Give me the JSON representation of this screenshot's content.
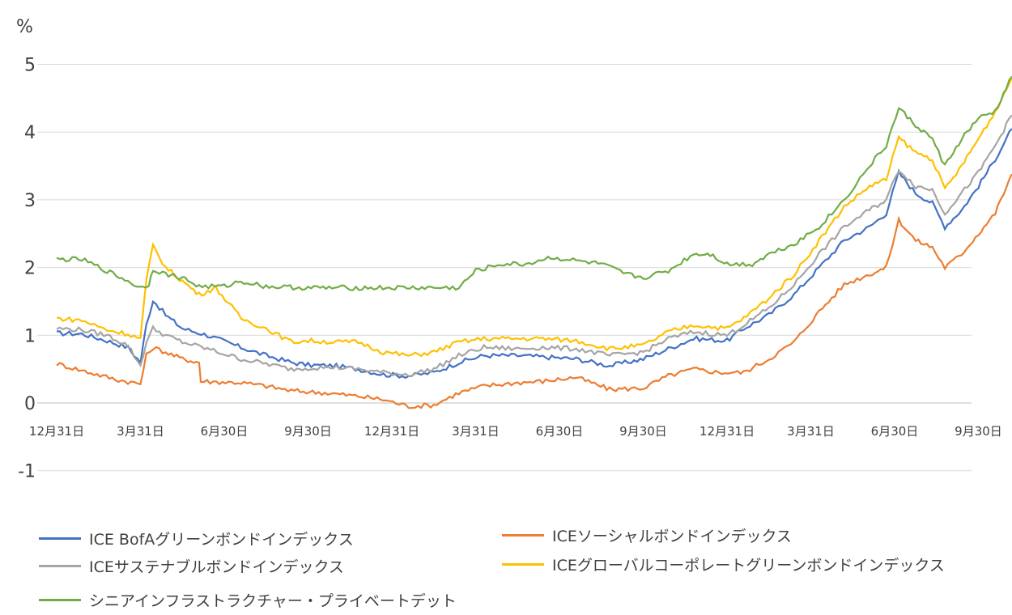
{
  "chart_data": {
    "type": "line",
    "ylabel": "%",
    "ylim": [
      -1,
      5
    ],
    "yticks": [
      "5",
      "4",
      "3",
      "2",
      "1",
      "0",
      "-1"
    ],
    "xticks": [
      "12月31日",
      "3月31日",
      "6月30日",
      "9月30日",
      "12月31日",
      "3月31日",
      "6月30日",
      "9月30日",
      "12月31日",
      "3月31日",
      "6月30日",
      "9月30日"
    ],
    "grid": true,
    "legend_position": "bottom",
    "series": [
      {
        "name": "ICE BofAグリーンボンドインデックス",
        "color": "#4472C4",
        "points": [
          [
            0,
            1.03
          ],
          [
            0.3,
            1.02
          ],
          [
            0.6,
            0.92
          ],
          [
            0.85,
            0.82
          ],
          [
            1.0,
            0.6
          ],
          [
            1.07,
            1.15
          ],
          [
            1.15,
            1.52
          ],
          [
            1.3,
            1.3
          ],
          [
            1.5,
            1.1
          ],
          [
            1.8,
            1.0
          ],
          [
            2.2,
            0.82
          ],
          [
            2.5,
            0.7
          ],
          [
            2.8,
            0.6
          ],
          [
            3.0,
            0.56
          ],
          [
            3.3,
            0.55
          ],
          [
            3.6,
            0.5
          ],
          [
            3.9,
            0.42
          ],
          [
            4.2,
            0.4
          ],
          [
            4.5,
            0.45
          ],
          [
            4.8,
            0.6
          ],
          [
            5.1,
            0.7
          ],
          [
            5.5,
            0.7
          ],
          [
            5.8,
            0.68
          ],
          [
            6.2,
            0.65
          ],
          [
            6.6,
            0.55
          ],
          [
            7.0,
            0.65
          ],
          [
            7.3,
            0.8
          ],
          [
            7.6,
            0.95
          ],
          [
            8.0,
            0.92
          ],
          [
            8.2,
            1.1
          ],
          [
            8.5,
            1.3
          ],
          [
            8.8,
            1.6
          ],
          [
            9.1,
            2.0
          ],
          [
            9.4,
            2.4
          ],
          [
            9.7,
            2.6
          ],
          [
            9.9,
            2.8
          ],
          [
            10.05,
            3.4
          ],
          [
            10.25,
            3.1
          ],
          [
            10.45,
            2.95
          ],
          [
            10.6,
            2.6
          ],
          [
            10.8,
            2.85
          ],
          [
            11.0,
            3.2
          ],
          [
            11.2,
            3.6
          ],
          [
            11.4,
            4.05
          ]
        ]
      },
      {
        "name": "ICEソーシャルボンドインデックス",
        "color": "#ED7D31",
        "points": [
          [
            0,
            0.58
          ],
          [
            0.3,
            0.48
          ],
          [
            0.7,
            0.35
          ],
          [
            1.0,
            0.28
          ],
          [
            1.07,
            0.7
          ],
          [
            1.15,
            0.82
          ],
          [
            1.3,
            0.75
          ],
          [
            1.5,
            0.65
          ],
          [
            1.7,
            0.6
          ],
          [
            1.72,
            0.32
          ],
          [
            2.2,
            0.3
          ],
          [
            2.5,
            0.25
          ],
          [
            2.8,
            0.18
          ],
          [
            3.2,
            0.15
          ],
          [
            3.6,
            0.1
          ],
          [
            3.9,
            0.05
          ],
          [
            4.2,
            -0.05
          ],
          [
            4.5,
            -0.03
          ],
          [
            4.8,
            0.15
          ],
          [
            5.1,
            0.25
          ],
          [
            5.5,
            0.3
          ],
          [
            5.8,
            0.32
          ],
          [
            6.2,
            0.38
          ],
          [
            6.6,
            0.2
          ],
          [
            7.0,
            0.22
          ],
          [
            7.3,
            0.4
          ],
          [
            7.6,
            0.5
          ],
          [
            7.9,
            0.45
          ],
          [
            8.2,
            0.45
          ],
          [
            8.5,
            0.65
          ],
          [
            8.8,
            0.9
          ],
          [
            9.1,
            1.35
          ],
          [
            9.4,
            1.75
          ],
          [
            9.7,
            1.9
          ],
          [
            9.9,
            2.0
          ],
          [
            10.05,
            2.7
          ],
          [
            10.25,
            2.4
          ],
          [
            10.45,
            2.3
          ],
          [
            10.6,
            2.0
          ],
          [
            10.8,
            2.2
          ],
          [
            11.0,
            2.5
          ],
          [
            11.2,
            2.8
          ],
          [
            11.4,
            3.38
          ]
        ]
      },
      {
        "name": "ICEサステナブルボンドインデックス",
        "color": "#A5A5A5",
        "points": [
          [
            0,
            1.1
          ],
          [
            0.3,
            1.08
          ],
          [
            0.6,
            1.0
          ],
          [
            0.85,
            0.85
          ],
          [
            1.0,
            0.55
          ],
          [
            1.07,
            0.9
          ],
          [
            1.15,
            1.1
          ],
          [
            1.3,
            1.0
          ],
          [
            1.5,
            0.9
          ],
          [
            1.8,
            0.8
          ],
          [
            2.2,
            0.65
          ],
          [
            2.5,
            0.58
          ],
          [
            2.8,
            0.5
          ],
          [
            3.0,
            0.52
          ],
          [
            3.3,
            0.53
          ],
          [
            3.6,
            0.5
          ],
          [
            3.9,
            0.45
          ],
          [
            4.2,
            0.42
          ],
          [
            4.5,
            0.5
          ],
          [
            4.8,
            0.7
          ],
          [
            5.1,
            0.82
          ],
          [
            5.5,
            0.8
          ],
          [
            5.8,
            0.82
          ],
          [
            6.2,
            0.8
          ],
          [
            6.6,
            0.7
          ],
          [
            7.0,
            0.75
          ],
          [
            7.3,
            0.95
          ],
          [
            7.6,
            1.05
          ],
          [
            8.0,
            1.0
          ],
          [
            8.2,
            1.15
          ],
          [
            8.5,
            1.4
          ],
          [
            8.8,
            1.75
          ],
          [
            9.1,
            2.2
          ],
          [
            9.4,
            2.6
          ],
          [
            9.7,
            2.85
          ],
          [
            9.9,
            3.0
          ],
          [
            10.05,
            3.45
          ],
          [
            10.25,
            3.2
          ],
          [
            10.45,
            3.15
          ],
          [
            10.6,
            2.8
          ],
          [
            10.8,
            3.1
          ],
          [
            11.0,
            3.4
          ],
          [
            11.2,
            3.8
          ],
          [
            11.4,
            4.25
          ]
        ]
      },
      {
        "name": "ICEグローバルコーポレートグリーンボンドインデックス",
        "color": "#FFC000",
        "points": [
          [
            0,
            1.25
          ],
          [
            0.3,
            1.22
          ],
          [
            0.6,
            1.08
          ],
          [
            0.85,
            1.02
          ],
          [
            1.0,
            0.95
          ],
          [
            1.07,
            1.8
          ],
          [
            1.15,
            2.32
          ],
          [
            1.3,
            2.0
          ],
          [
            1.5,
            1.8
          ],
          [
            1.7,
            1.6
          ],
          [
            1.9,
            1.7
          ],
          [
            2.2,
            1.25
          ],
          [
            2.5,
            1.1
          ],
          [
            2.8,
            0.9
          ],
          [
            3.0,
            0.92
          ],
          [
            3.3,
            0.9
          ],
          [
            3.6,
            0.9
          ],
          [
            3.9,
            0.75
          ],
          [
            4.2,
            0.7
          ],
          [
            4.5,
            0.75
          ],
          [
            4.8,
            0.9
          ],
          [
            5.1,
            0.95
          ],
          [
            5.5,
            0.95
          ],
          [
            5.8,
            0.95
          ],
          [
            6.2,
            0.92
          ],
          [
            6.6,
            0.8
          ],
          [
            7.0,
            0.85
          ],
          [
            7.3,
            1.05
          ],
          [
            7.6,
            1.15
          ],
          [
            8.0,
            1.1
          ],
          [
            8.2,
            1.25
          ],
          [
            8.5,
            1.55
          ],
          [
            8.8,
            1.9
          ],
          [
            9.1,
            2.4
          ],
          [
            9.4,
            2.9
          ],
          [
            9.7,
            3.2
          ],
          [
            9.9,
            3.3
          ],
          [
            10.05,
            3.92
          ],
          [
            10.25,
            3.7
          ],
          [
            10.45,
            3.6
          ],
          [
            10.6,
            3.15
          ],
          [
            10.8,
            3.5
          ],
          [
            11.0,
            3.9
          ],
          [
            11.2,
            4.3
          ],
          [
            11.4,
            4.8
          ]
        ]
      },
      {
        "name": "シニアインフラストラクチャー・プライベートデット",
        "color": "#70AD47",
        "points": [
          [
            0,
            2.12
          ],
          [
            0.3,
            2.12
          ],
          [
            0.6,
            1.95
          ],
          [
            0.85,
            1.8
          ],
          [
            1.0,
            1.7
          ],
          [
            1.1,
            1.75
          ],
          [
            1.15,
            1.98
          ],
          [
            1.3,
            1.9
          ],
          [
            1.5,
            1.85
          ],
          [
            1.7,
            1.72
          ],
          [
            2.0,
            1.72
          ],
          [
            2.2,
            1.8
          ],
          [
            2.5,
            1.72
          ],
          [
            3.0,
            1.7
          ],
          [
            3.5,
            1.7
          ],
          [
            4.0,
            1.7
          ],
          [
            4.5,
            1.7
          ],
          [
            4.8,
            1.7
          ],
          [
            5.0,
            1.95
          ],
          [
            5.3,
            2.05
          ],
          [
            5.6,
            2.05
          ],
          [
            5.9,
            2.15
          ],
          [
            6.2,
            2.1
          ],
          [
            6.5,
            2.05
          ],
          [
            6.8,
            1.9
          ],
          [
            7.0,
            1.85
          ],
          [
            7.3,
            1.95
          ],
          [
            7.6,
            2.2
          ],
          [
            7.8,
            2.2
          ],
          [
            8.0,
            2.05
          ],
          [
            8.3,
            2.05
          ],
          [
            8.5,
            2.2
          ],
          [
            8.8,
            2.35
          ],
          [
            9.1,
            2.6
          ],
          [
            9.4,
            3.0
          ],
          [
            9.7,
            3.5
          ],
          [
            9.9,
            3.8
          ],
          [
            10.05,
            4.35
          ],
          [
            10.25,
            4.1
          ],
          [
            10.45,
            3.9
          ],
          [
            10.6,
            3.5
          ],
          [
            10.8,
            3.9
          ],
          [
            11.0,
            4.2
          ],
          [
            11.2,
            4.3
          ],
          [
            11.4,
            4.82
          ]
        ]
      }
    ]
  }
}
